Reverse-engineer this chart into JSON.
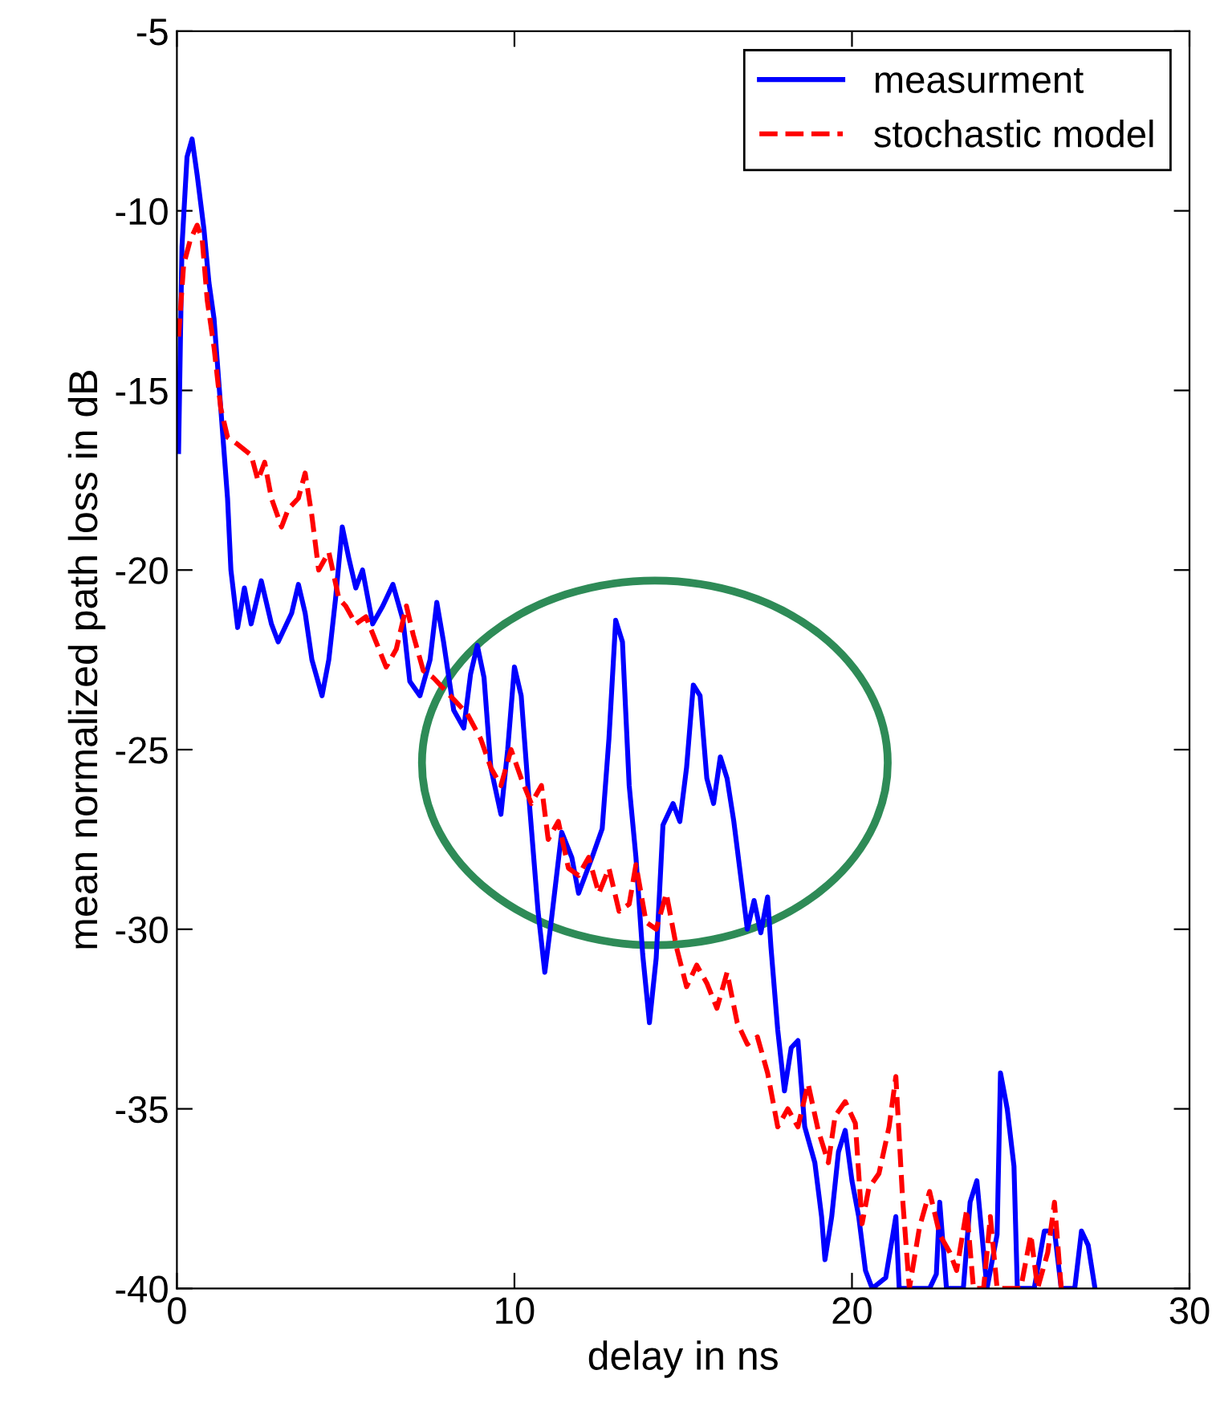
{
  "chart_data": {
    "type": "line",
    "xlabel": "delay in ns",
    "ylabel": "mean normalized path loss in dB",
    "xlim": [
      0,
      30
    ],
    "ylim": [
      -40,
      -5
    ],
    "xticks": [
      0,
      10,
      20,
      30
    ],
    "yticks": [
      -40,
      -35,
      -30,
      -25,
      -20,
      -15,
      -10,
      -5
    ],
    "grid": false,
    "legend": "top right",
    "marker": "none",
    "series": [
      {
        "name": "measurment",
        "color": "#0000ff",
        "line_style": "solid",
        "x": [
          0.05,
          0.15,
          0.3,
          0.45,
          0.6,
          0.8,
          0.95,
          1.1,
          1.3,
          1.5,
          1.6,
          1.8,
          2.0,
          2.2,
          2.5,
          2.8,
          3.0,
          3.4,
          3.6,
          3.8,
          4.0,
          4.3,
          4.5,
          4.7,
          4.9,
          5.1,
          5.3,
          5.5,
          5.8,
          6.1,
          6.4,
          6.7,
          6.9,
          7.2,
          7.5,
          7.7,
          7.9,
          8.2,
          8.5,
          8.7,
          8.9,
          9.1,
          9.3,
          9.6,
          9.8,
          10.0,
          10.2,
          10.4,
          10.7,
          10.9,
          11.1,
          11.4,
          11.7,
          11.9,
          12.3,
          12.6,
          12.8,
          13.0,
          13.2,
          13.4,
          13.6,
          13.8,
          14.0,
          14.2,
          14.4,
          14.7,
          14.9,
          15.1,
          15.3,
          15.5,
          15.7,
          15.9,
          16.1,
          16.3,
          16.5,
          16.7,
          16.9,
          17.1,
          17.3,
          17.5,
          17.6,
          17.8,
          18.0,
          18.2,
          18.4,
          18.6,
          18.9,
          19.1,
          19.2,
          19.4,
          19.6,
          19.8,
          20.0,
          20.2,
          20.4,
          20.6,
          21.0,
          21.3,
          21.4,
          22.3,
          22.5,
          22.6,
          22.8,
          23.3,
          23.5,
          23.7,
          24.0,
          24.3,
          24.4,
          24.6,
          24.8,
          24.9,
          25.4,
          25.7,
          26.0,
          26.2,
          26.6,
          26.8,
          27.0,
          27.2
        ],
        "values": [
          -16.7,
          -11,
          -8.5,
          -8,
          -9,
          -10.5,
          -12,
          -13,
          -15.5,
          -18,
          -20,
          -21.6,
          -20.5,
          -21.5,
          -20.3,
          -21.5,
          -22,
          -21.2,
          -20.4,
          -21.2,
          -22.5,
          -23.5,
          -22.5,
          -20.8,
          -18.8,
          -19.7,
          -20.5,
          -20,
          -21.5,
          -21,
          -20.4,
          -21.4,
          -23.1,
          -23.5,
          -22.5,
          -20.9,
          -22,
          -23.9,
          -24.4,
          -22.9,
          -22.1,
          -23,
          -25.5,
          -26.8,
          -25,
          -22.7,
          -23.5,
          -26,
          -29.5,
          -31.2,
          -29.7,
          -27.3,
          -28,
          -29,
          -28,
          -27.2,
          -24.7,
          -21.4,
          -22,
          -26,
          -28,
          -30.7,
          -32.6,
          -30.8,
          -27.1,
          -26.5,
          -27,
          -25.5,
          -23.2,
          -23.5,
          -25.8,
          -26.5,
          -25.2,
          -25.8,
          -27,
          -28.5,
          -30,
          -29.2,
          -30.1,
          -29.1,
          -30.5,
          -32.8,
          -34.5,
          -33.3,
          -33.1,
          -35.5,
          -36.5,
          -38,
          -39.2,
          -38,
          -36.2,
          -35.6,
          -37,
          -38,
          -39.5,
          -40,
          -39.7,
          -38,
          -40,
          -40,
          -39.6,
          -37.6,
          -40,
          -40,
          -37.6,
          -37,
          -40,
          -38.5,
          -34,
          -35,
          -36.6,
          -40,
          -40,
          -38.4,
          -38.4,
          -40,
          -40,
          -38.4,
          -38.8,
          -40
        ]
      },
      {
        "name": "stochastic model",
        "color": "#ff0000",
        "line_style": "dashed",
        "x": [
          0.05,
          0.2,
          0.4,
          0.6,
          0.75,
          0.9,
          1.1,
          1.3,
          1.5,
          1.8,
          2.2,
          2.4,
          2.6,
          2.8,
          3.1,
          3.3,
          3.6,
          3.8,
          4.0,
          4.2,
          4.5,
          4.8,
          5.0,
          5.3,
          5.6,
          5.9,
          6.2,
          6.5,
          6.8,
          7.0,
          7.3,
          7.6,
          7.9,
          8.3,
          8.6,
          9.0,
          9.3,
          9.6,
          9.9,
          10.2,
          10.5,
          10.8,
          11.0,
          11.3,
          11.6,
          11.9,
          12.2,
          12.5,
          12.8,
          13.1,
          13.4,
          13.6,
          13.9,
          14.2,
          14.5,
          14.8,
          15.1,
          15.4,
          15.7,
          16.0,
          16.3,
          16.6,
          16.9,
          17.2,
          17.5,
          17.8,
          18.1,
          18.4,
          18.7,
          19.0,
          19.3,
          19.5,
          19.8,
          20.1,
          20.3,
          20.5,
          20.8,
          21.1,
          21.3,
          21.5,
          21.7,
          22.0,
          22.3,
          22.6,
          22.9,
          23.1,
          23.4,
          23.6,
          23.9,
          24.1,
          24.3,
          25.0,
          25.3,
          25.5,
          25.8,
          26.0,
          26.2,
          26.5
        ],
        "values": [
          -13.5,
          -11.5,
          -10.8,
          -10.4,
          -10.8,
          -12.5,
          -13.8,
          -15.5,
          -16.3,
          -16.5,
          -16.8,
          -17.5,
          -17,
          -18,
          -18.8,
          -18.3,
          -18,
          -17.3,
          -18.5,
          -20,
          -19.5,
          -20.8,
          -21,
          -21.5,
          -21.3,
          -22,
          -22.7,
          -22.2,
          -21,
          -21.8,
          -22.8,
          -23,
          -23.3,
          -23.7,
          -24,
          -24.7,
          -25.5,
          -26,
          -25,
          -25.8,
          -26.5,
          -26,
          -27.5,
          -27,
          -28.3,
          -28.5,
          -28,
          -29,
          -28.3,
          -29.5,
          -29.3,
          -28.2,
          -29.8,
          -30,
          -29,
          -30.5,
          -31.6,
          -31,
          -31.5,
          -32.2,
          -31.2,
          -32.6,
          -33.2,
          -33,
          -34,
          -35.5,
          -35,
          -35.5,
          -34.3,
          -35.6,
          -36.5,
          -35.2,
          -34.8,
          -35.4,
          -38.2,
          -37.2,
          -36.8,
          -35.5,
          -34.1,
          -37.5,
          -40,
          -38.3,
          -37.3,
          -38.5,
          -39,
          -39.5,
          -37.8,
          -40,
          -40,
          -38,
          -40,
          -40,
          -38.5,
          -40,
          -39,
          -37.6,
          -40,
          -40
        ]
      }
    ]
  }
}
